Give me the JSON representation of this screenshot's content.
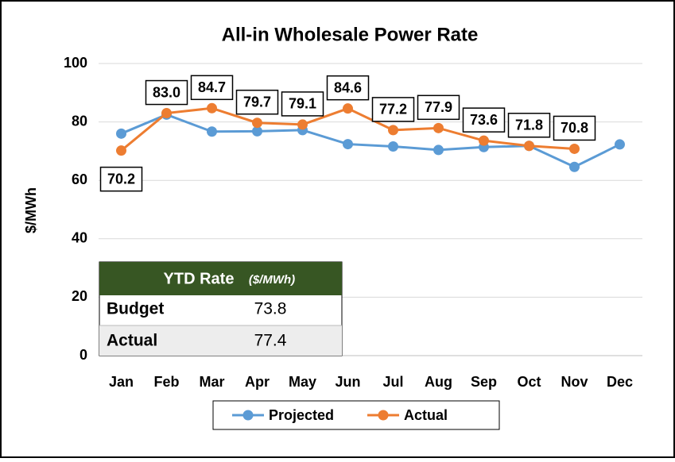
{
  "chart_data": {
    "type": "line",
    "title": "All-in Wholesale Power Rate",
    "ylabel": "$/MWh",
    "categories": [
      "Jan",
      "Feb",
      "Mar",
      "Apr",
      "May",
      "Jun",
      "Jul",
      "Aug",
      "Sep",
      "Oct",
      "Nov",
      "Dec"
    ],
    "series": [
      {
        "name": "Projected",
        "color": "#5b9bd5",
        "values": [
          76.0,
          82.5,
          76.7,
          76.8,
          77.2,
          72.4,
          71.6,
          70.4,
          71.4,
          71.8,
          64.6,
          72.3
        ]
      },
      {
        "name": "Actual",
        "color": "#ed7d31",
        "values": [
          70.2,
          83.0,
          84.7,
          79.7,
          79.1,
          84.6,
          77.2,
          77.9,
          73.6,
          71.8,
          70.8,
          null
        ],
        "value_labels": [
          "70.2",
          "83.0",
          "84.7",
          "79.7",
          "79.1",
          "84.6",
          "77.2",
          "77.9",
          "73.6",
          "71.8",
          "70.8",
          null
        ]
      }
    ],
    "ylim": [
      0,
      100
    ],
    "yticks": [
      0,
      20,
      40,
      60,
      80,
      100
    ],
    "grid": true,
    "legend": "bottom"
  },
  "table": {
    "title": "YTD Rate",
    "unit": "($/MWh)",
    "rows": [
      [
        "Budget",
        "73.8"
      ],
      [
        "Actual",
        "77.4"
      ]
    ]
  }
}
